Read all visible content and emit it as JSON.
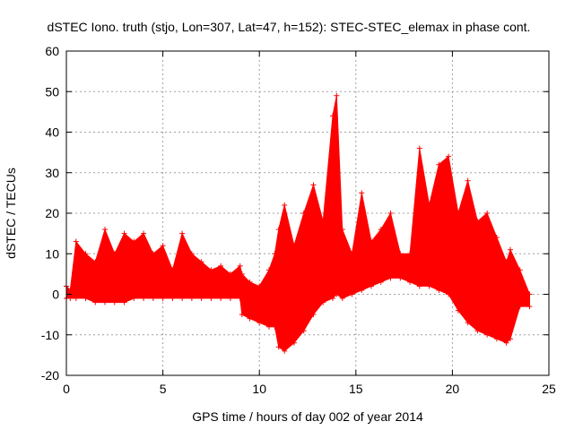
{
  "chart_data": {
    "type": "area",
    "title": "dSTEC Iono. truth (stjo, Lon=307, Lat=47, h=152): STEC-STEC_elemax in phase cont.",
    "xlabel": "GPS time / hours of day 002 of year 2014",
    "ylabel": "dSTEC  / TECUs",
    "xlim": [
      0,
      25
    ],
    "ylim": [
      -20,
      60
    ],
    "xticks": [
      0,
      5,
      10,
      15,
      20,
      25
    ],
    "yticks": [
      -20,
      -10,
      0,
      10,
      20,
      30,
      40,
      50,
      60
    ],
    "grid": true,
    "series_color": "#ff0000",
    "series": [
      {
        "x": [
          0.0,
          0.2,
          0.5,
          1.0,
          1.5,
          2.0,
          2.5,
          3.0,
          3.5,
          4.0,
          4.5,
          5.0,
          5.5,
          6.0,
          6.5,
          7.0,
          7.5,
          8.0,
          8.5,
          9.0,
          9.1,
          9.5,
          10.0,
          10.5,
          10.8,
          11.0,
          11.3,
          11.8,
          12.3,
          12.8,
          13.3,
          13.8,
          14.0,
          14.3,
          14.8,
          15.3,
          15.8,
          16.3,
          16.8,
          17.3,
          17.8,
          18.3,
          18.8,
          19.3,
          19.8,
          20.3,
          20.8,
          21.3,
          21.8,
          22.3,
          22.8,
          23.0,
          23.5,
          24.0
        ],
        "y_upper": [
          2,
          1,
          13,
          10,
          8,
          16,
          10,
          15,
          13,
          15,
          10,
          12,
          6,
          15,
          10,
          8,
          6,
          7,
          5,
          7,
          5,
          3,
          2,
          6,
          10,
          16,
          22,
          12,
          20,
          27,
          18,
          44,
          49,
          16,
          10,
          25,
          13,
          16,
          20,
          10,
          10,
          36,
          22,
          32,
          34,
          20,
          28,
          18,
          20,
          14,
          8,
          11,
          6,
          0
        ],
        "y_lower": [
          -1,
          -1,
          -1,
          -1,
          -2,
          -2,
          -2,
          -2,
          -1,
          -1,
          -1,
          -1,
          -1,
          -1,
          -1,
          -1,
          -1,
          -1,
          -1,
          -1,
          -5,
          -6,
          -7,
          -8,
          -8,
          -13,
          -14,
          -12,
          -9,
          -5,
          -2,
          -1,
          0,
          -1,
          0,
          1,
          2,
          3,
          4,
          4,
          3,
          2,
          2,
          1,
          0,
          -4,
          -7,
          -9,
          -10,
          -11,
          -12,
          -11,
          -3,
          -3
        ]
      }
    ]
  }
}
